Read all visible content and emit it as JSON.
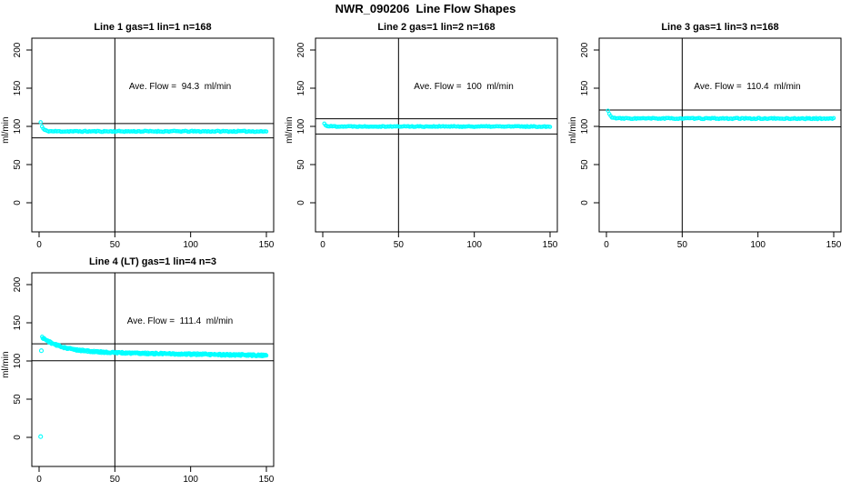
{
  "figure_title": "NWR_090206  Line Flow Shapes",
  "colors": {
    "background": "#ffffff",
    "data_points": "#00ffff",
    "axis_lines": "#000000",
    "reference_lines": "#000000"
  },
  "axes": {
    "x_ticks": [
      0,
      50,
      100,
      150
    ],
    "y_ticks": [
      0,
      50,
      100,
      150,
      200
    ],
    "y_label": "ml/min",
    "x_label": "",
    "vline_x": 50,
    "x_range": [
      0,
      150
    ],
    "y_range": [
      0,
      200
    ],
    "grid": false
  },
  "chart_data": [
    {
      "type": "scatter",
      "panel": "line-1",
      "title": "Line 1 gas=1 lin=1 n=168",
      "annotation": "Ave. Flow =  94.3  ml/min",
      "ave_flow_ml_min": 94.3,
      "n": 168,
      "ref_line_upper": 103.7,
      "ref_line_lower": 84.9,
      "vline_x": 50,
      "series": {
        "n_points": 168,
        "x_start": 1,
        "x_end": 150,
        "initial": 105.5,
        "steady_start": 93.5,
        "steady_end": 93.5,
        "decay_tau": 1.4,
        "jitter": 0.7,
        "seed": 11
      },
      "extra_points": [],
      "slot": {
        "col": 0,
        "row": 0
      }
    },
    {
      "type": "scatter",
      "panel": "line-2",
      "title": "Line 2 gas=1 lin=2 n=168",
      "annotation": "Ave. Flow =  100  ml/min",
      "ave_flow_ml_min": 100,
      "n": 168,
      "ref_line_upper": 110,
      "ref_line_lower": 90,
      "vline_x": 50,
      "series": {
        "n_points": 168,
        "x_start": 1,
        "x_end": 150,
        "initial": 103.5,
        "steady_start": 100,
        "steady_end": 99.8,
        "decay_tau": 1.2,
        "jitter": 0.6,
        "seed": 22
      },
      "extra_points": [],
      "slot": {
        "col": 1,
        "row": 0
      }
    },
    {
      "type": "scatter",
      "panel": "line-3",
      "title": "Line 3 gas=1 lin=3 n=168",
      "annotation": "Ave. Flow =  110.4  ml/min",
      "ave_flow_ml_min": 110.4,
      "n": 168,
      "ref_line_upper": 121.4,
      "ref_line_lower": 99.4,
      "vline_x": 50,
      "series": {
        "n_points": 168,
        "x_start": 1,
        "x_end": 150,
        "initial": 120.5,
        "steady_start": 110.4,
        "steady_end": 110.2,
        "decay_tau": 1.5,
        "jitter": 0.7,
        "seed": 33
      },
      "extra_points": [],
      "slot": {
        "col": 2,
        "row": 0
      }
    },
    {
      "type": "scatter",
      "panel": "line-4-lt",
      "title": "Line 4 (LT) gas=1 lin=4 n=3",
      "annotation": "Ave. Flow =  111.4  ml/min",
      "ave_flow_ml_min": 111.4,
      "n": 3,
      "ref_line_upper": 122.5,
      "ref_line_lower": 100.3,
      "vline_x": 50,
      "series": {
        "n_points": 360,
        "x_start": 2,
        "x_end": 150,
        "initial": 131,
        "steady_start": 112,
        "steady_end": 107.3,
        "decay_tau": 13,
        "jitter": 1.2,
        "seed": 44
      },
      "extra_points": [
        [
          1,
          1
        ],
        [
          1.5,
          113.5
        ]
      ],
      "slot": {
        "col": 0,
        "row": 1
      }
    }
  ]
}
